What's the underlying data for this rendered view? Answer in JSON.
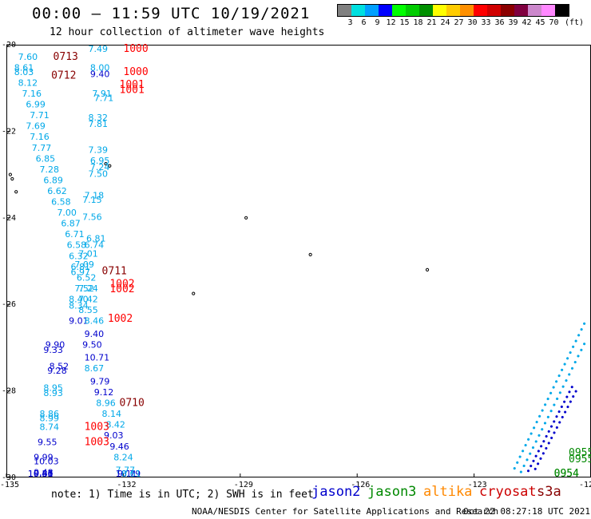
{
  "header": {
    "title": "00:00 – 11:59 UTC 10/19/2021",
    "subtitle": "12 hour collection of altimeter wave heights"
  },
  "legend": {
    "unit": "(ft)",
    "bins": [
      {
        "label": "3",
        "color": "#808080"
      },
      {
        "label": "6",
        "color": "#00e0e0"
      },
      {
        "label": "9",
        "color": "#00a0ff"
      },
      {
        "label": "12",
        "color": "#0000ff"
      },
      {
        "label": "15",
        "color": "#00ff00"
      },
      {
        "label": "18",
        "color": "#00cc00"
      },
      {
        "label": "21",
        "color": "#009000"
      },
      {
        "label": "24",
        "color": "#ffff00"
      },
      {
        "label": "27",
        "color": "#ffcc00"
      },
      {
        "label": "30",
        "color": "#ff9000"
      },
      {
        "label": "33",
        "color": "#ff0000"
      },
      {
        "label": "36",
        "color": "#d00000"
      },
      {
        "label": "39",
        "color": "#8b0000"
      },
      {
        "label": "42",
        "color": "#800040"
      },
      {
        "label": "45",
        "color": "#cc88cc"
      },
      {
        "label": "70",
        "color": "#ff88ff"
      },
      {
        "label": "",
        "color": "#000000"
      }
    ]
  },
  "axes": {
    "lat_ticks": [
      "-20",
      "-22",
      "-24",
      "-26",
      "-28",
      "-30"
    ],
    "lon_ticks": [
      "-135",
      "-132",
      "-129",
      "-126",
      "-123",
      "-120"
    ],
    "lat_range": [
      -30,
      -20
    ],
    "lon_range": [
      -135,
      -120
    ]
  },
  "note": "note: 1) Time is in UTC; 2) SWH is in feet",
  "satellites": [
    {
      "name": "jason2",
      "color": "#0000cc"
    },
    {
      "name": "jason3",
      "color": "#008800"
    },
    {
      "name": "altika",
      "color": "#ff8800"
    },
    {
      "name": "cryosat",
      "color": "#cc0000"
    },
    {
      "name": "s3a",
      "color": "#880000"
    }
  ],
  "footer": {
    "credit": "NOAA/NESDIS Center for Satellite Applications and Research",
    "generated": "Oct 22 08:27:18 UTC 2021"
  },
  "chart_data": {
    "type": "scatter",
    "title": "00:00 – 11:59 UTC 10/19/2021",
    "subtitle": "12 hour collection of altimeter wave heights",
    "xlim": [
      -135,
      -120
    ],
    "ylim": [
      -30,
      -20
    ],
    "colors": {
      "blue": "#0000cc",
      "cyan": "#00a8e8",
      "red": "#ff0000",
      "darkred": "#880000",
      "green": "#008800"
    },
    "observations": [
      {
        "lon": -132.9,
        "lat": -20.05,
        "text": "7.49",
        "color": "cyan"
      },
      {
        "lon": -134.7,
        "lat": -20.35,
        "text": "7.60",
        "color": "cyan"
      },
      {
        "lon": -134.8,
        "lat": -20.6,
        "text": "8.61",
        "color": "cyan"
      },
      {
        "lon": -134.8,
        "lat": -20.7,
        "text": "8.03",
        "color": "cyan"
      },
      {
        "lon": -134.7,
        "lat": -20.95,
        "text": "8.12",
        "color": "cyan"
      },
      {
        "lon": -134.6,
        "lat": -21.2,
        "text": "7.16",
        "color": "cyan"
      },
      {
        "lon": -134.5,
        "lat": -21.45,
        "text": "6.99",
        "color": "cyan"
      },
      {
        "lon": -134.4,
        "lat": -21.7,
        "text": "7.71",
        "color": "cyan"
      },
      {
        "lon": -134.5,
        "lat": -21.95,
        "text": "7.69",
        "color": "cyan"
      },
      {
        "lon": -134.4,
        "lat": -22.2,
        "text": "7.16",
        "color": "cyan"
      },
      {
        "lon": -134.35,
        "lat": -22.45,
        "text": "7.77",
        "color": "cyan"
      },
      {
        "lon": -134.25,
        "lat": -22.7,
        "text": "6.85",
        "color": "cyan"
      },
      {
        "lon": -134.15,
        "lat": -22.95,
        "text": "7.28",
        "color": "cyan"
      },
      {
        "lon": -134.05,
        "lat": -23.2,
        "text": "6.89",
        "color": "cyan"
      },
      {
        "lon": -133.95,
        "lat": -23.45,
        "text": "6.62",
        "color": "cyan"
      },
      {
        "lon": -133.85,
        "lat": -23.7,
        "text": "6.58",
        "color": "cyan"
      },
      {
        "lon": -133.7,
        "lat": -23.95,
        "text": "7.00",
        "color": "cyan"
      },
      {
        "lon": -133.6,
        "lat": -24.2,
        "text": "6.87",
        "color": "cyan"
      },
      {
        "lon": -133.5,
        "lat": -24.45,
        "text": "6.71",
        "color": "cyan"
      },
      {
        "lon": -133.45,
        "lat": -24.7,
        "text": "6.58",
        "color": "cyan"
      },
      {
        "lon": -133.4,
        "lat": -24.95,
        "text": "6.32",
        "color": "cyan"
      },
      {
        "lon": -133.35,
        "lat": -25.2,
        "text": "6.81",
        "color": "cyan"
      },
      {
        "lon": -133.35,
        "lat": -25.32,
        "text": "6.97",
        "color": "cyan"
      },
      {
        "lon": -133.2,
        "lat": -25.45,
        "text": "6.52",
        "color": "cyan"
      },
      {
        "lon": -133.25,
        "lat": -25.7,
        "text": "7.52",
        "color": "cyan"
      },
      {
        "lon": -133.15,
        "lat": -25.7,
        "text": "7.24",
        "color": "cyan"
      },
      {
        "lon": -133.4,
        "lat": -25.95,
        "text": "8.40",
        "color": "cyan"
      },
      {
        "lon": -133.15,
        "lat": -25.95,
        "text": "7.42",
        "color": "cyan"
      },
      {
        "lon": -133.4,
        "lat": -26.1,
        "text": "8.34",
        "color": "cyan"
      },
      {
        "lon": -133.15,
        "lat": -26.2,
        "text": "8.55",
        "color": "cyan"
      },
      {
        "lon": -133.4,
        "lat": -26.45,
        "text": "9.01",
        "color": "blue"
      },
      {
        "lon": -133.0,
        "lat": -26.45,
        "text": "8.46",
        "color": "cyan"
      },
      {
        "lon": -133.0,
        "lat": -26.75,
        "text": "9.40",
        "color": "blue"
      },
      {
        "lon": -134.0,
        "lat": -27.0,
        "text": "9.90",
        "color": "blue"
      },
      {
        "lon": -134.05,
        "lat": -27.12,
        "text": "9.33",
        "color": "blue"
      },
      {
        "lon": -133.05,
        "lat": -27.0,
        "text": "9.50",
        "color": "blue"
      },
      {
        "lon": -133.0,
        "lat": -27.3,
        "text": "10.71",
        "color": "blue"
      },
      {
        "lon": -133.9,
        "lat": -27.5,
        "text": "8.52",
        "color": "blue"
      },
      {
        "lon": -133.95,
        "lat": -27.6,
        "text": "9.28",
        "color": "blue"
      },
      {
        "lon": -133.0,
        "lat": -27.55,
        "text": "8.67",
        "color": "cyan"
      },
      {
        "lon": -132.85,
        "lat": -27.85,
        "text": "9.79",
        "color": "blue"
      },
      {
        "lon": -134.05,
        "lat": -28.0,
        "text": "8.95",
        "color": "cyan"
      },
      {
        "lon": -134.05,
        "lat": -28.12,
        "text": "8.93",
        "color": "cyan"
      },
      {
        "lon": -132.75,
        "lat": -28.1,
        "text": "9.12",
        "color": "blue"
      },
      {
        "lon": -132.7,
        "lat": -28.35,
        "text": "8.96",
        "color": "cyan"
      },
      {
        "lon": -132.55,
        "lat": -28.6,
        "text": "8.14",
        "color": "cyan"
      },
      {
        "lon": -134.15,
        "lat": -28.6,
        "text": "8.86",
        "color": "cyan"
      },
      {
        "lon": -134.15,
        "lat": -28.7,
        "text": "8.99",
        "color": "cyan"
      },
      {
        "lon": -132.45,
        "lat": -28.85,
        "text": "8.42",
        "color": "cyan"
      },
      {
        "lon": -134.15,
        "lat": -28.9,
        "text": "8.74",
        "color": "cyan"
      },
      {
        "lon": -132.5,
        "lat": -29.1,
        "text": "9.03",
        "color": "blue"
      },
      {
        "lon": -134.2,
        "lat": -29.25,
        "text": "9.55",
        "color": "blue"
      },
      {
        "lon": -132.35,
        "lat": -29.35,
        "text": "9.46",
        "color": "blue"
      },
      {
        "lon": -134.3,
        "lat": -29.6,
        "text": "9.99",
        "color": "blue"
      },
      {
        "lon": -134.3,
        "lat": -29.7,
        "text": "10.03",
        "color": "blue"
      },
      {
        "lon": -132.25,
        "lat": -29.6,
        "text": "8.24",
        "color": "cyan"
      },
      {
        "lon": -132.2,
        "lat": -29.9,
        "text": "7.77",
        "color": "cyan"
      },
      {
        "lon": -134.3,
        "lat": -29.95,
        "text": "9.48",
        "color": "blue"
      },
      {
        "lon": -134.3,
        "lat": -30.15,
        "text": "9.81",
        "color": "blue"
      },
      {
        "lon": -132.15,
        "lat": -30.2,
        "text": "9.11",
        "color": "blue"
      },
      {
        "lon": -132.2,
        "lat": -30.45,
        "text": "10.79",
        "color": "blue"
      },
      {
        "lon": -134.45,
        "lat": -30.7,
        "text": "10.46",
        "color": "blue"
      },
      {
        "lon": -134.45,
        "lat": -30.8,
        "text": "10.33",
        "color": "blue"
      },
      {
        "lon": -132.05,
        "lat": -30.72,
        "text": "8.61",
        "color": "cyan"
      },
      {
        "lon": -132.85,
        "lat": -20.6,
        "text": "8.00",
        "color": "cyan"
      },
      {
        "lon": -132.85,
        "lat": -20.75,
        "text": "9.40",
        "color": "blue"
      },
      {
        "lon": -132.8,
        "lat": -21.2,
        "text": "7.91",
        "color": "cyan"
      },
      {
        "lon": -132.75,
        "lat": -21.3,
        "text": "7.71",
        "color": "cyan"
      },
      {
        "lon": -132.9,
        "lat": -21.75,
        "text": "8.32",
        "color": "cyan"
      },
      {
        "lon": -132.9,
        "lat": -21.9,
        "text": "7.81",
        "color": "cyan"
      },
      {
        "lon": -132.9,
        "lat": -22.5,
        "text": "7.39",
        "color": "cyan"
      },
      {
        "lon": -132.85,
        "lat": -22.75,
        "text": "6.95",
        "color": "cyan"
      },
      {
        "lon": -132.85,
        "lat": -22.9,
        "text": "7.24",
        "color": "cyan"
      },
      {
        "lon": -132.9,
        "lat": -23.05,
        "text": "7.50",
        "color": "cyan"
      },
      {
        "lon": -133.0,
        "lat": -23.55,
        "text": "7.18",
        "color": "cyan"
      },
      {
        "lon": -133.05,
        "lat": -23.65,
        "text": "7.15",
        "color": "cyan"
      },
      {
        "lon": -133.05,
        "lat": -24.05,
        "text": "7.56",
        "color": "cyan"
      },
      {
        "lon": -132.95,
        "lat": -24.55,
        "text": "6.81",
        "color": "cyan"
      },
      {
        "lon": -133.0,
        "lat": -24.7,
        "text": "6.74",
        "color": "cyan"
      },
      {
        "lon": -133.15,
        "lat": -24.9,
        "text": "7.01",
        "color": "cyan"
      },
      {
        "lon": -133.25,
        "lat": -25.15,
        "text": "7.09",
        "color": "cyan"
      },
      {
        "lon": -133.8,
        "lat": -20.35,
        "text": "0713",
        "color": "darkred",
        "kind": "time"
      },
      {
        "lon": -133.85,
        "lat": -20.78,
        "text": "0712",
        "color": "darkred",
        "kind": "time"
      },
      {
        "lon": -132.55,
        "lat": -25.3,
        "text": "0711",
        "color": "darkred",
        "kind": "time"
      },
      {
        "lon": -132.1,
        "lat": -28.35,
        "text": "0710",
        "color": "darkred",
        "kind": "time"
      },
      {
        "lon": -132.0,
        "lat": -20.05,
        "text": "1000",
        "color": "red",
        "kind": "time"
      },
      {
        "lon": -132.0,
        "lat": -20.7,
        "text": "1000",
        "color": "red",
        "kind": "time"
      },
      {
        "lon": -132.1,
        "lat": -21.0,
        "text": "1001",
        "color": "red",
        "kind": "time"
      },
      {
        "lon": -132.1,
        "lat": -21.12,
        "text": "1001",
        "color": "red",
        "kind": "time"
      },
      {
        "lon": -132.35,
        "lat": -25.6,
        "text": "1002",
        "color": "red",
        "kind": "time"
      },
      {
        "lon": -132.35,
        "lat": -25.72,
        "text": "1002",
        "color": "red",
        "kind": "time"
      },
      {
        "lon": -132.4,
        "lat": -26.4,
        "text": "1002",
        "color": "red",
        "kind": "time"
      },
      {
        "lon": -133.0,
        "lat": -28.9,
        "text": "1003",
        "color": "red",
        "kind": "time"
      },
      {
        "lon": -133.0,
        "lat": -29.25,
        "text": "1003",
        "color": "red",
        "kind": "time"
      },
      {
        "lon": -120.55,
        "lat": -29.5,
        "text": "0955",
        "color": "green",
        "kind": "time"
      },
      {
        "lon": -120.5,
        "lat": -29.65,
        "text": "0955",
        "color": "green",
        "kind": "time"
      },
      {
        "lon": -120.95,
        "lat": -30.5,
        "text": "0954",
        "color": "green",
        "kind": "time"
      },
      {
        "lon": -120.95,
        "lat": -30.62,
        "text": "0954",
        "color": "green",
        "kind": "time"
      }
    ],
    "tracks": [
      {
        "color": "cyan",
        "from": [
          -122.5,
          -30.95
        ],
        "to": [
          -119.85,
          -26.0
        ],
        "count": 38
      },
      {
        "color": "cyan",
        "from": [
          -122.3,
          -30.95
        ],
        "to": [
          -119.75,
          -26.3
        ],
        "count": 34
      },
      {
        "color": "blue",
        "from": [
          -122.1,
          -30.85
        ],
        "to": [
          -120.45,
          -28.0
        ],
        "count": 26
      },
      {
        "color": "blue",
        "from": [
          -121.95,
          -30.85
        ],
        "to": [
          -120.35,
          -28.1
        ],
        "count": 24
      }
    ],
    "islands": [
      {
        "lon": -132.45,
        "lat": -22.75
      },
      {
        "lon": -132.35,
        "lat": -22.8
      },
      {
        "lon": -134.9,
        "lat": -23.0
      },
      {
        "lon": -134.85,
        "lat": -23.1
      },
      {
        "lon": -134.75,
        "lat": -23.4
      },
      {
        "lon": -128.85,
        "lat": -24.0
      },
      {
        "lon": -127.2,
        "lat": -24.85
      },
      {
        "lon": -124.2,
        "lat": -25.2
      },
      {
        "lon": -130.2,
        "lat": -25.75
      }
    ]
  }
}
